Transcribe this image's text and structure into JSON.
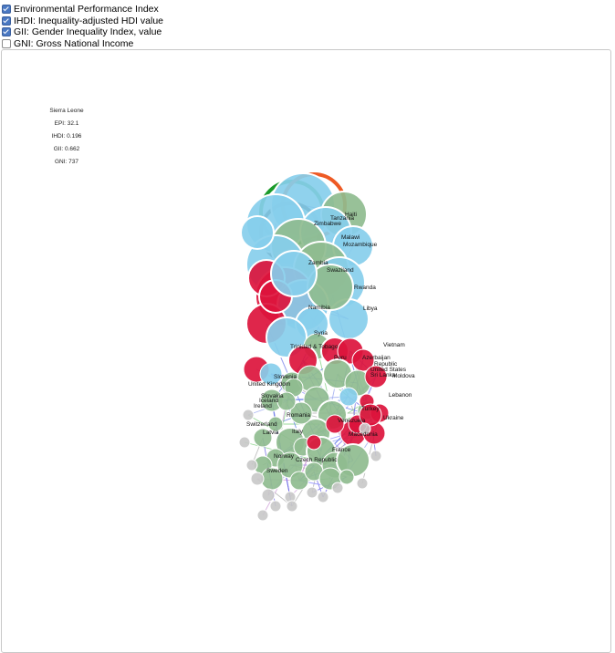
{
  "controls": [
    {
      "label": "Environmental Performance Index",
      "checked": true
    },
    {
      "label": "IHDI: Inequality-adjusted HDI value",
      "checked": true
    },
    {
      "label": "GII: Gender Inequality Index, value",
      "checked": true
    },
    {
      "label": "GNI: Gross National Income",
      "checked": false
    }
  ],
  "info": {
    "country": "Sierra Leone",
    "epi": "EPI: 32.1",
    "ihdi": "IHDI: 0.196",
    "gii": "GII: 0.662",
    "gni": "GNI: 737"
  },
  "colors": {
    "blue": "#87ceeb",
    "green": "#8fbc8f",
    "red": "#dc143c",
    "gray": "#c8c8c8"
  },
  "labels": [
    "Tanzania",
    "Haiti",
    "Zimbabwe",
    "Malawi",
    "Mozambique",
    "Zambia",
    "Swaziland",
    "Rwanda",
    "Namibia",
    "Libya",
    "Syria",
    "Trinidad & Tobago",
    "Vietnam",
    "Azerbaijan",
    "Peru",
    "United States",
    "Moldova",
    "Slovenia",
    "United Kingdom",
    "Slovakia",
    "Lebanon",
    "Ireland",
    "Switzerland",
    "Romania",
    "Venezuela",
    "Ukraine",
    "Turkey",
    "Macedonia",
    "Latvia",
    "Italy",
    "France",
    "Norway",
    "Czech Republic",
    "Sweden",
    "Iceland",
    "Republic",
    "Sri Lanka"
  ]
}
